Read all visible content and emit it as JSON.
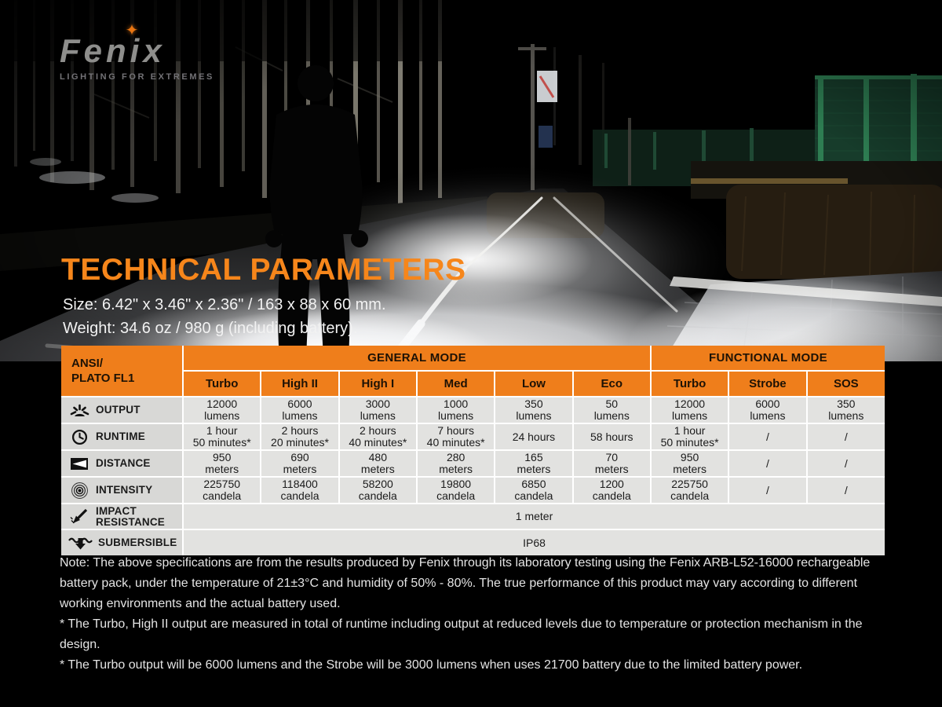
{
  "brand": {
    "name_pre": "Fen",
    "name_i": "i",
    "name_post": "x",
    "tagline": "LIGHTING FOR EXTREMES"
  },
  "header": {
    "title": "TECHNICAL PARAMETERS",
    "size_line": "Size: 6.42\" x 3.46\" x 2.36\" / 163 x 88 x 60 mm.",
    "weight_line": "Weight: 34.6 oz / 980 g (including battery)."
  },
  "table": {
    "corner_label": "ANSI/\nPLATO FL1",
    "groups": [
      {
        "label": "GENERAL MODE",
        "span": 6
      },
      {
        "label": "FUNCTIONAL MODE",
        "span": 3
      }
    ],
    "columns": [
      "Turbo",
      "High II",
      "High I",
      "Med",
      "Low",
      "Eco",
      "Turbo",
      "Strobe",
      "SOS"
    ],
    "rows": [
      {
        "icon": "output-icon",
        "label": "OUTPUT",
        "cells": [
          "12000\nlumens",
          "6000\nlumens",
          "3000\nlumens",
          "1000\nlumens",
          "350\nlumens",
          "50\nlumens",
          "12000\nlumens",
          "6000\nlumens",
          "350\nlumens"
        ]
      },
      {
        "icon": "runtime-icon",
        "label": "RUNTIME",
        "cells": [
          "1 hour\n50 minutes*",
          "2 hours\n20 minutes*",
          "2 hours\n40 minutes*",
          "7 hours\n40 minutes*",
          "24 hours",
          "58 hours",
          "1 hour\n50 minutes*",
          "/",
          "/"
        ]
      },
      {
        "icon": "distance-icon",
        "label": "DISTANCE",
        "cells": [
          "950\nmeters",
          "690\nmeters",
          "480\nmeters",
          "280\nmeters",
          "165\nmeters",
          "70\nmeters",
          "950\nmeters",
          "/",
          "/"
        ]
      },
      {
        "icon": "intensity-icon",
        "label": "INTENSITY",
        "cells": [
          "225750\ncandela",
          "118400\ncandela",
          "58200\ncandela",
          "19800\ncandela",
          "6850\ncandela",
          "1200\ncandela",
          "225750\ncandela",
          "/",
          "/"
        ]
      }
    ],
    "span_rows": [
      {
        "icon": "impact-icon",
        "label": "IMPACT\nRESISTANCE",
        "value": "1 meter"
      },
      {
        "icon": "submersible-icon",
        "label": "SUBMERSIBLE",
        "value": "IP68"
      }
    ]
  },
  "notes": [
    "Note: The above specifications are from the results produced by Fenix through its laboratory testing using the Fenix ARB-L52-16000 rechargeable battery pack, under the temperature of 21±3°C and humidity of 50% - 80%. The true performance of this product may vary according to different working environments and the actual battery used.",
    "* The Turbo, High II output are measured in total of runtime including output at reduced levels due to temperature or protection mechanism in the design.",
    "* The Turbo output will be 6000 lumens and the Strobe will be 3000 lumens when uses 21700 battery due to the limited battery power."
  ],
  "colors": {
    "accent_orange": "#f6861b",
    "table_header_orange": "#ef7e1b",
    "cell_gray": "#e2e2e0",
    "label_gray": "#d8d8d6",
    "fence_green": "#2e7d52"
  }
}
